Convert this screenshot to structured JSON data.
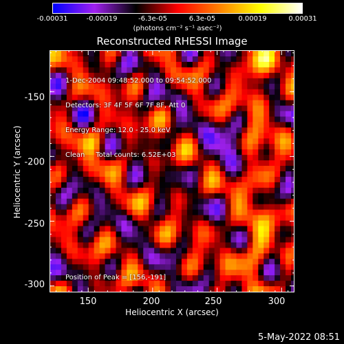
{
  "chart_data": {
    "type": "heatmap",
    "title": "Reconstructed RHESSI Image",
    "xlabel": "Heliocentric X (arcsec)",
    "ylabel": "Heliocentric Y (arcsec)",
    "xlim": [
      120,
      310
    ],
    "ylim": [
      -305,
      -118
    ],
    "xticks": [
      "150",
      "200",
      "250",
      "300"
    ],
    "xtick_values": [
      150,
      200,
      250,
      300
    ],
    "yticks": [
      "-150",
      "-200",
      "-250",
      "-300"
    ],
    "ytick_values": [
      -150,
      -200,
      -250,
      -300
    ],
    "colorbar": {
      "ticks": [
        "-0.00031",
        "-0.00019",
        "-6.3e-05",
        "6.3e-05",
        "0.00019",
        "0.00031"
      ],
      "tick_values": [
        -0.00031,
        -0.00019,
        -6.3e-05,
        6.3e-05,
        0.00019,
        0.00031
      ],
      "unit_label": "(photons cm⁻² s⁻¹ asec⁻²)",
      "colors": [
        "#0000ff",
        "#a020f0",
        "#000000",
        "#ff0000",
        "#ff8000",
        "#ffff00",
        "#ffffff"
      ]
    },
    "annotations": [
      "1-Dec-2004 09:48:52.000 to 09:54:52.000",
      "Detectors: 3F 4F 5F 6F 7F 8F, Att 0",
      "Energy Range: 12.0 - 25.0 keV",
      "Clean     Total counts: 6.52E+03"
    ],
    "peak_label": "Position of Peak = [156,-191]",
    "peak_position": [
      156,
      -191
    ]
  },
  "footer": {
    "date": "5-May-2022 08:51"
  }
}
